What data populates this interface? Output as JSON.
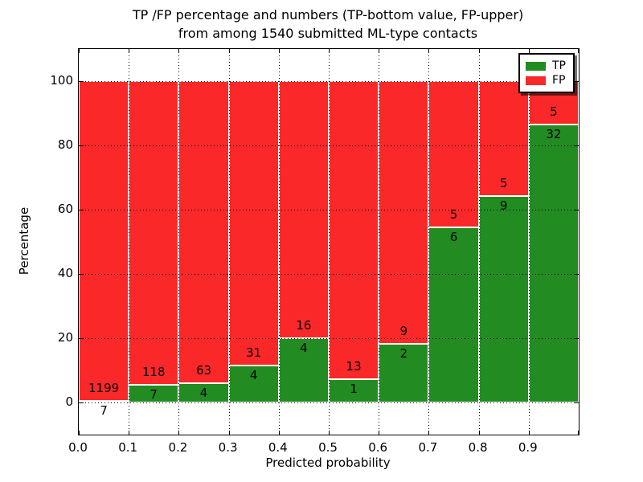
{
  "title": {
    "line1": "TP /FP percentage and numbers (TP-bottom value, FP-upper)",
    "line2": "from among 1540 submitted ML-type contacts"
  },
  "axes": {
    "xlabel": "Predicted probability",
    "ylabel": "Percentage",
    "x_tick_labels": [
      "0.0",
      "0.1",
      "0.2",
      "0.3",
      "0.4",
      "0.5",
      "0.6",
      "0.7",
      "0.8",
      "0.9"
    ],
    "y_tick_labels": [
      "0",
      "20",
      "40",
      "60",
      "80",
      "100"
    ],
    "y_tick_values": [
      0,
      20,
      40,
      60,
      80,
      100
    ],
    "grid": "dotted, drawn above bars"
  },
  "legend": {
    "position": "upper right",
    "items": [
      {
        "label": "TP",
        "color": "#228c22"
      },
      {
        "label": "FP",
        "color": "#fa2828"
      }
    ]
  },
  "chart_data": {
    "type": "bar",
    "stacked": true,
    "normalized_to_percent": true,
    "title": "TP /FP percentage and numbers (TP-bottom value, FP-upper) from among 1540 submitted ML-type contacts",
    "xlabel": "Predicted probability",
    "ylabel": "Percentage",
    "xlim": [
      0.0,
      1.0
    ],
    "ylim": [
      -10,
      110
    ],
    "bin_width": 0.1,
    "bin_starts": [
      0.0,
      0.1,
      0.2,
      0.3,
      0.4,
      0.5,
      0.6,
      0.7,
      0.8,
      0.9
    ],
    "series": [
      {
        "name": "TP",
        "color": "#228c22",
        "counts": [
          7,
          7,
          4,
          4,
          4,
          1,
          2,
          6,
          9,
          32
        ]
      },
      {
        "name": "FP",
        "color": "#fa2828",
        "counts": [
          1199,
          118,
          63,
          31,
          16,
          13,
          9,
          5,
          5,
          5
        ]
      }
    ],
    "tp_percent_heights": [
      0.58,
      5.6,
      5.97,
      11.43,
      20.0,
      7.14,
      18.18,
      54.55,
      64.29,
      86.49
    ],
    "fp_percent_heights": [
      99.42,
      94.4,
      94.03,
      88.57,
      80.0,
      92.86,
      81.82,
      45.45,
      35.71,
      13.51
    ],
    "label_convention": "TP count printed below segment boundary, FP count printed above it"
  }
}
